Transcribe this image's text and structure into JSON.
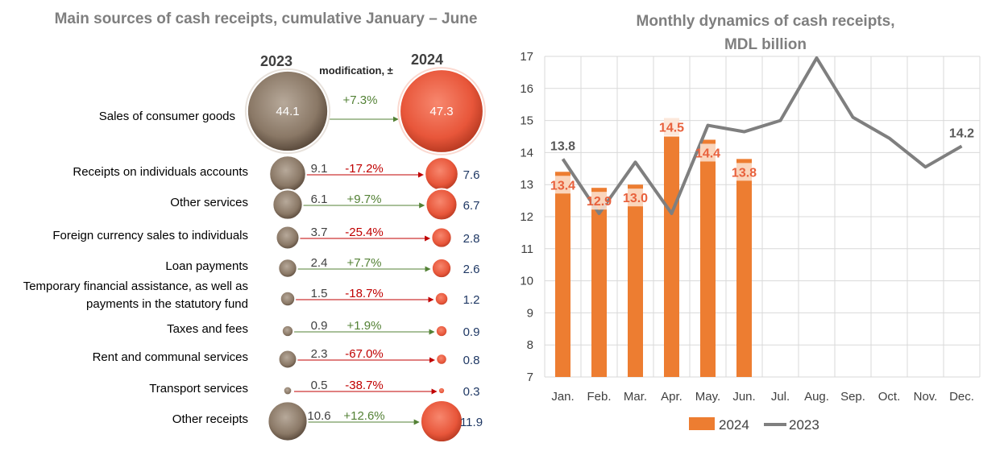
{
  "chart_data": [
    {
      "type": "bubble",
      "title": "Main sources of cash receipts, cumulative January – June",
      "series_names": [
        "2023",
        "2024"
      ],
      "change_header": "modification, ±",
      "categories": [
        {
          "label": "Sales of consumer goods",
          "v2023": "44.1",
          "v2024": "47.3",
          "change": "+7.3%"
        },
        {
          "label": "Receipts on individuals accounts",
          "v2023": "9.1",
          "v2024": "7.6",
          "change": "-17.2%"
        },
        {
          "label": "Other services",
          "v2023": "6.1",
          "v2024": "6.7",
          "change": "+9.7%"
        },
        {
          "label": "Foreign currency sales to individuals",
          "v2023": "3.7",
          "v2024": "2.8",
          "change": "-25.4%"
        },
        {
          "label": "Loan payments",
          "v2023": "2.4",
          "v2024": "2.6",
          "change": "+7.7%"
        },
        {
          "label": "Temporary financial assistance, as well as payments in the statutory fund",
          "label_lines": [
            "Temporary financial assistance, as well as",
            "payments in the statutory fund"
          ],
          "v2023": "1.5",
          "v2024": "1.2",
          "change": "-18.7%"
        },
        {
          "label": "Taxes and fees",
          "v2023": "0.9",
          "v2024": "0.9",
          "change": "+1.9%"
        },
        {
          "label": "Rent and communal services",
          "v2023": "2.3",
          "v2024": "0.8",
          "change": "-67.0%"
        },
        {
          "label": "Transport services",
          "v2023": "0.5",
          "v2024": "0.3",
          "change": "-38.7%"
        },
        {
          "label": "Other receipts",
          "v2023": "10.6",
          "v2024": "11.9",
          "change": "+12.6%"
        }
      ]
    },
    {
      "type": "bar+line",
      "title_lines": [
        "Monthly dynamics of cash receipts,",
        "MDL billion"
      ],
      "categories": [
        "Jan.",
        "Feb.",
        "Mar.",
        "Apr.",
        "May.",
        "Jun.",
        "Jul.",
        "Aug.",
        "Sep.",
        "Oct.",
        "Nov.",
        "Dec."
      ],
      "ylim": [
        7,
        17
      ],
      "yticks": [
        7,
        8,
        9,
        10,
        11,
        12,
        13,
        14,
        15,
        16,
        17
      ],
      "grid": true,
      "legend_position": "bottom",
      "series": [
        {
          "name": "2024",
          "type": "bar",
          "color": "#ed7d31",
          "values": [
            13.4,
            12.9,
            13.0,
            14.5,
            14.4,
            13.8,
            null,
            null,
            null,
            null,
            null,
            null
          ],
          "data_labels": [
            "13.4",
            "12.9",
            "13.0",
            "14.5",
            "14.4",
            "13.8"
          ]
        },
        {
          "name": "2023",
          "type": "line",
          "color": "#7f7f7f",
          "values": [
            13.8,
            12.1,
            13.7,
            12.1,
            14.85,
            14.65,
            15.0,
            16.95,
            15.1,
            14.45,
            13.55,
            14.2
          ],
          "data_labels": {
            "0": "13.8",
            "11": "14.2"
          }
        }
      ]
    }
  ]
}
